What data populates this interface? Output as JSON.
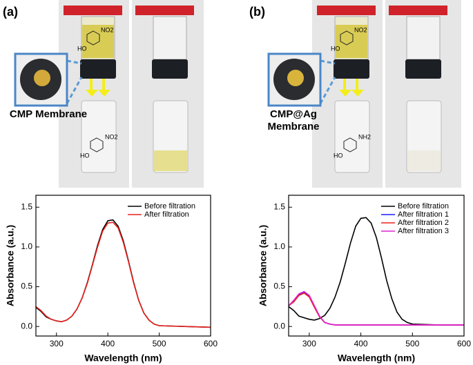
{
  "panels": [
    {
      "label": "(a)",
      "membrane": [
        "CMP Membrane"
      ],
      "top_groups": [
        "HO",
        "NO2"
      ],
      "bottom_groups": [
        "HO",
        "NO2"
      ]
    },
    {
      "label": "(b)",
      "membrane": [
        "CMP@Ag",
        "Membrane"
      ],
      "top_groups": [
        "HO",
        "NO2"
      ],
      "bottom_groups": [
        "HO",
        "NH2"
      ]
    }
  ],
  "chart_data": [
    {
      "type": "line",
      "xlabel": "Wavelength (nm)",
      "ylabel": "Absorbance (a.u.)",
      "legend": "upper right",
      "x": [
        260,
        270,
        280,
        290,
        300,
        310,
        320,
        330,
        340,
        350,
        360,
        370,
        380,
        390,
        400,
        410,
        420,
        430,
        440,
        450,
        460,
        470,
        480,
        490,
        500,
        550,
        600
      ],
      "xlim": [
        260,
        600
      ],
      "xticks": [
        300,
        400,
        500,
        600
      ],
      "ylim": [
        -0.12,
        1.65
      ],
      "yticks": [
        {
          "value": 0,
          "label": "0.0"
        },
        0.5,
        {
          "value": 1,
          "label": "1.0"
        },
        1.5
      ],
      "series": [
        {
          "name": "Before filtration",
          "color": "#000000",
          "values": [
            0.24,
            0.19,
            0.12,
            0.09,
            0.07,
            0.06,
            0.08,
            0.13,
            0.22,
            0.36,
            0.55,
            0.78,
            1.02,
            1.22,
            1.33,
            1.34,
            1.26,
            1.08,
            0.83,
            0.56,
            0.33,
            0.17,
            0.08,
            0.03,
            0.01,
            0.0,
            -0.01
          ]
        },
        {
          "name": "After filtration",
          "color": "#e8201c",
          "values": [
            0.25,
            0.2,
            0.13,
            0.09,
            0.07,
            0.06,
            0.08,
            0.13,
            0.22,
            0.36,
            0.54,
            0.77,
            1.0,
            1.2,
            1.3,
            1.31,
            1.24,
            1.06,
            0.82,
            0.55,
            0.33,
            0.17,
            0.08,
            0.03,
            0.01,
            0.0,
            -0.01
          ]
        }
      ]
    },
    {
      "type": "line",
      "xlabel": "Wavelength (nm)",
      "ylabel": "Absorbance (a.u.)",
      "legend": "upper right",
      "x": [
        260,
        270,
        280,
        290,
        300,
        310,
        320,
        330,
        340,
        350,
        360,
        370,
        380,
        390,
        400,
        410,
        420,
        430,
        440,
        450,
        460,
        470,
        480,
        490,
        500,
        550,
        600
      ],
      "xlim": [
        260,
        600
      ],
      "xticks": [
        300,
        400,
        500,
        600
      ],
      "ylim": [
        -0.12,
        1.65
      ],
      "yticks": [
        {
          "value": 0,
          "label": "0.0"
        },
        0.5,
        {
          "value": 1,
          "label": "1.0"
        },
        1.5
      ],
      "series": [
        {
          "name": "Before filtration",
          "color": "#000000",
          "values": [
            0.25,
            0.2,
            0.13,
            0.11,
            0.09,
            0.08,
            0.1,
            0.14,
            0.23,
            0.37,
            0.56,
            0.8,
            1.05,
            1.26,
            1.36,
            1.37,
            1.3,
            1.12,
            0.86,
            0.58,
            0.35,
            0.18,
            0.09,
            0.05,
            0.03,
            0.02,
            0.02
          ]
        },
        {
          "name": "After filtration 1",
          "color": "#1a1aff",
          "values": [
            0.26,
            0.32,
            0.4,
            0.43,
            0.38,
            0.25,
            0.12,
            0.05,
            0.03,
            0.02,
            0.02,
            0.02,
            0.02,
            0.02,
            0.02,
            0.02,
            0.02,
            0.02,
            0.02,
            0.02,
            0.02,
            0.02,
            0.02,
            0.02,
            0.02,
            0.02,
            0.02
          ]
        },
        {
          "name": "After filtration 2",
          "color": "#e8201c",
          "values": [
            0.26,
            0.31,
            0.39,
            0.42,
            0.37,
            0.24,
            0.12,
            0.05,
            0.03,
            0.02,
            0.02,
            0.02,
            0.02,
            0.02,
            0.02,
            0.02,
            0.02,
            0.02,
            0.02,
            0.02,
            0.02,
            0.02,
            0.02,
            0.02,
            0.02,
            0.02,
            0.02
          ]
        },
        {
          "name": "After filtration 3",
          "color": "#e020d0",
          "values": [
            0.26,
            0.33,
            0.41,
            0.44,
            0.39,
            0.26,
            0.13,
            0.05,
            0.03,
            0.02,
            0.02,
            0.02,
            0.02,
            0.02,
            0.02,
            0.02,
            0.02,
            0.02,
            0.02,
            0.02,
            0.02,
            0.02,
            0.02,
            0.02,
            0.02,
            0.02,
            0.02
          ]
        }
      ]
    }
  ]
}
